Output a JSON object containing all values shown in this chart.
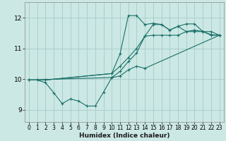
{
  "xlabel": "Humidex (Indice chaleur)",
  "xlim": [
    -0.5,
    23.5
  ],
  "ylim": [
    8.6,
    12.5
  ],
  "yticks": [
    9,
    10,
    11,
    12
  ],
  "xticks": [
    0,
    1,
    2,
    3,
    4,
    5,
    6,
    7,
    8,
    9,
    10,
    11,
    12,
    13,
    14,
    15,
    16,
    17,
    18,
    19,
    20,
    21,
    22,
    23
  ],
  "bg_color": "#cce8e4",
  "grid_color": "#aacfcc",
  "line_color": "#1a7068",
  "lines": [
    {
      "x": [
        0,
        1,
        2,
        3,
        4,
        5,
        6,
        7,
        8,
        9,
        10,
        11,
        12,
        13,
        14,
        23
      ],
      "y": [
        9.97,
        9.97,
        9.88,
        9.55,
        9.2,
        9.35,
        9.28,
        9.12,
        9.12,
        9.57,
        10.05,
        10.1,
        10.3,
        10.42,
        10.35,
        11.43
      ]
    },
    {
      "x": [
        0,
        1,
        2,
        10,
        11,
        12,
        13,
        14,
        15,
        16,
        17,
        18,
        19,
        20,
        21,
        22,
        23
      ],
      "y": [
        9.97,
        9.97,
        9.97,
        10.18,
        10.42,
        10.7,
        11.0,
        11.4,
        11.43,
        11.43,
        11.43,
        11.43,
        11.55,
        11.6,
        11.55,
        11.45,
        11.43
      ]
    },
    {
      "x": [
        2,
        10,
        11,
        12,
        13,
        14,
        15,
        16,
        17,
        18,
        19,
        20,
        21,
        22,
        23
      ],
      "y": [
        9.97,
        10.18,
        10.82,
        12.07,
        12.07,
        11.78,
        11.82,
        11.78,
        11.6,
        11.72,
        11.55,
        11.55,
        11.55,
        11.43,
        11.43
      ]
    },
    {
      "x": [
        0,
        10,
        11,
        12,
        13,
        14,
        15,
        16,
        17,
        18,
        19,
        20,
        21,
        22,
        23
      ],
      "y": [
        9.97,
        10.05,
        10.25,
        10.57,
        10.85,
        11.4,
        11.78,
        11.78,
        11.6,
        11.72,
        11.8,
        11.8,
        11.55,
        11.55,
        11.43
      ]
    }
  ]
}
